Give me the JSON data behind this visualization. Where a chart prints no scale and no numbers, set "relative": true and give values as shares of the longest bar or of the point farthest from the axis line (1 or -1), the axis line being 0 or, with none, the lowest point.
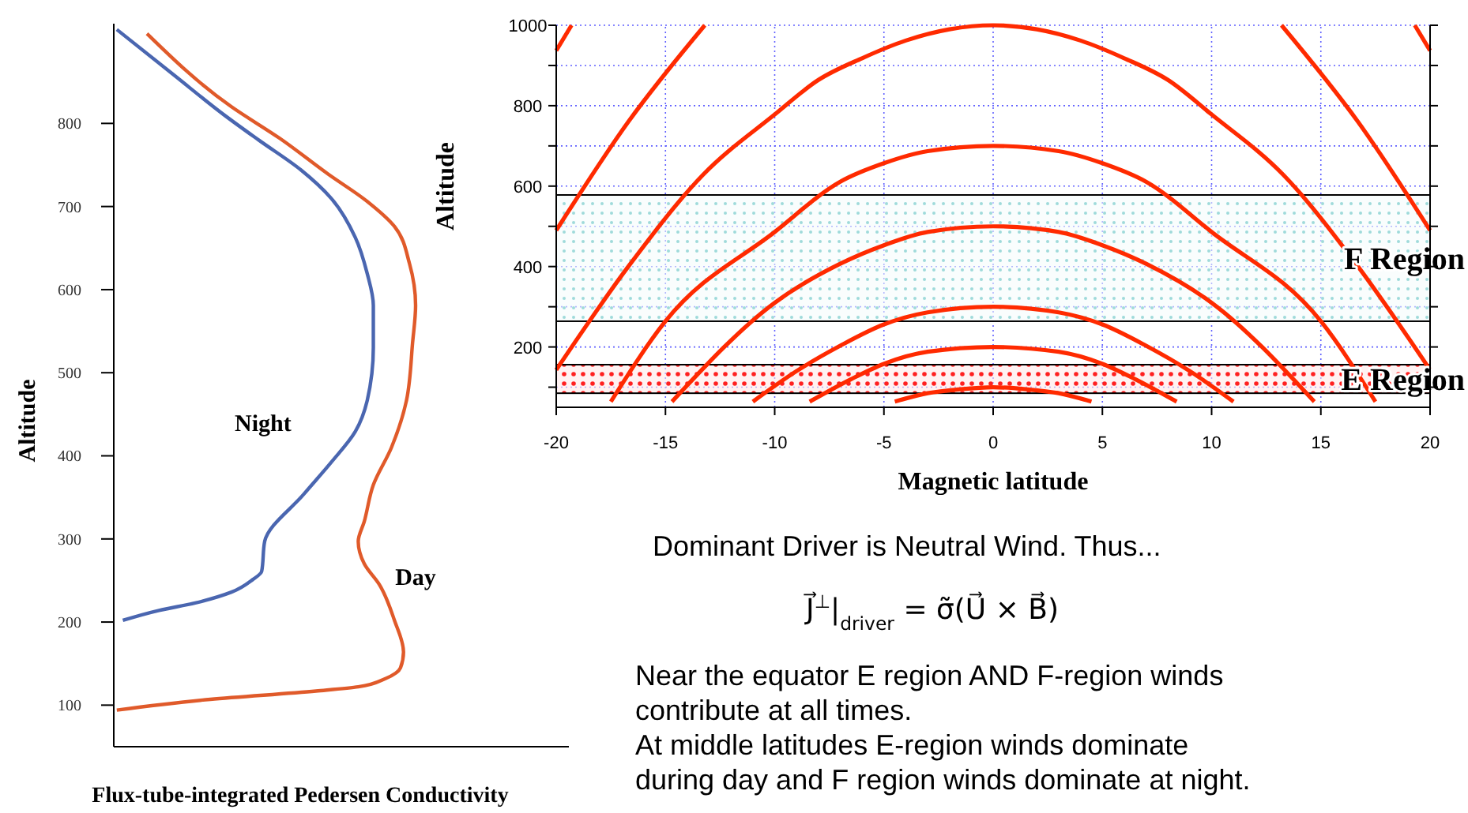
{
  "chart_data": [
    {
      "type": "line",
      "orientation": "horizontal",
      "relative": true,
      "xlabel": "Flux-tube-integrated Pedersen Conductivity",
      "ylabel": "Altitude",
      "ylim": [
        50,
        920
      ],
      "yticks": [
        100,
        200,
        300,
        400,
        500,
        600,
        700,
        800
      ],
      "legend": false,
      "series": [
        {
          "name": "Night",
          "color": "#4a66b0",
          "x": [
            913,
            858,
            809,
            780,
            744,
            710,
            663,
            619,
            581,
            530,
            467,
            429,
            392,
            354,
            297,
            261,
            251,
            236,
            223,
            214,
            202
          ],
          "values": [
            0.01,
            0.2,
            0.37,
            0.48,
            0.62,
            0.72,
            0.8,
            0.84,
            0.86,
            0.86,
            0.84,
            0.8,
            0.72,
            0.63,
            0.5,
            0.49,
            0.46,
            0.39,
            0.27,
            0.15,
            0.03
          ]
        },
        {
          "name": "Day",
          "color": "#e05a2a",
          "x": [
            908,
            820,
            782,
            739,
            706,
            676,
            631,
            581,
            536,
            467,
            410,
            365,
            321,
            297,
            270,
            245,
            202,
            164,
            145,
            132,
            122,
            117,
            107,
            94
          ],
          "values": [
            0.11,
            0.39,
            0.55,
            0.71,
            0.84,
            0.93,
            0.98,
            1,
            0.99,
            0.97,
            0.92,
            0.86,
            0.83,
            0.81,
            0.83,
            0.88,
            0.93,
            0.96,
            0.95,
            0.9,
            0.81,
            0.67,
            0.32,
            0.01
          ]
        }
      ]
    },
    {
      "type": "line",
      "xlabel": "Magnetic latitude",
      "ylabel": "Altitude",
      "xlim": [
        -20,
        20
      ],
      "xticks": [
        -20,
        -15,
        -10,
        -5,
        0,
        5,
        10,
        15,
        20
      ],
      "ylim": [
        50,
        1000
      ],
      "yticks": [
        {
          "value": 100,
          "label": null
        },
        200,
        {
          "value": 300,
          "label": null
        },
        400,
        {
          "value": 500,
          "label": null
        },
        600,
        {
          "value": 700,
          "label": null
        },
        800,
        {
          "value": 900,
          "label": null
        },
        1000
      ],
      "grid": true,
      "legend": false,
      "bands": [
        {
          "axis": "y",
          "from": 264,
          "to": 578,
          "label": "F Region",
          "color": "#9fdada"
        },
        {
          "axis": "y",
          "from": 85,
          "to": 156,
          "label": "E Region",
          "color": "#ff2020"
        }
      ],
      "series": [
        {
          "color": "#ff2a00",
          "x": [
            -20,
            -16.7,
            -13.3,
            -10,
            -8,
            -6,
            -4,
            -2,
            0,
            2,
            4,
            6,
            8,
            10,
            13.3,
            16.7,
            20
          ],
          "values": [
            143,
            400,
            627,
            778,
            864,
            918,
            962,
            990,
            1000,
            990,
            962,
            918,
            864,
            778,
            627,
            400,
            143
          ]
        },
        {
          "color": "#ff2a00",
          "x": [
            -17.5,
            -15,
            -10,
            -7,
            -5,
            -3,
            0,
            3,
            5,
            7,
            10,
            15,
            17.5
          ],
          "values": [
            64,
            264,
            486,
            611,
            657,
            687,
            700,
            687,
            657,
            611,
            486,
            264,
            64
          ]
        },
        {
          "color": "#ff2a00",
          "x": [
            -14.7,
            -10,
            -7,
            -5,
            -3,
            0,
            3,
            5,
            7,
            10,
            14.7
          ],
          "values": [
            64,
            310,
            407,
            453,
            486,
            500,
            486,
            453,
            407,
            310,
            64
          ]
        },
        {
          "color": "#ff2a00",
          "x": [
            -11,
            -9,
            -7,
            -5,
            -3,
            0,
            3,
            5,
            7,
            9,
            11
          ],
          "values": [
            64,
            140,
            203,
            256,
            286,
            300,
            286,
            256,
            203,
            140,
            64
          ]
        },
        {
          "color": "#ff2a00",
          "x": [
            -8.4,
            -6.5,
            -5,
            -3,
            0,
            3,
            5,
            6.5,
            8.4
          ],
          "values": [
            64,
            120,
            158,
            188,
            200,
            188,
            158,
            120,
            64
          ]
        },
        {
          "color": "#ff2a00",
          "x": [
            -4.5,
            -3,
            -1.5,
            0,
            1.5,
            3,
            4.5
          ],
          "values": [
            64,
            85,
            95,
            100,
            95,
            85,
            64
          ]
        },
        {
          "color": "#ff2a00",
          "x": [
            -20,
            -16.7,
            -13.2
          ],
          "values": [
            490,
            760,
            1000
          ]
        },
        {
          "color": "#ff2a00",
          "x": [
            13.2,
            16.7,
            20
          ],
          "values": [
            1000,
            760,
            490
          ]
        },
        {
          "color": "#ff2a00",
          "x": [
            -20,
            -19.3
          ],
          "values": [
            937,
            1000
          ]
        },
        {
          "color": "#ff2a00",
          "x": [
            19.3,
            20
          ],
          "values": [
            1000,
            937
          ]
        }
      ]
    },
    {
      "type": "other",
      "annotations": [
        "Dominant Driver is Neutral Wind.  Thus...",
        "J⃗$^{⊥}$|$_{driver}$ = σ̃(U⃗ × B⃗)",
        "Near the equator E region AND F-region winds contribute at all times.",
        "At middle latitudes E-region winds dominate during day and F region winds dominate at night."
      ]
    }
  ]
}
